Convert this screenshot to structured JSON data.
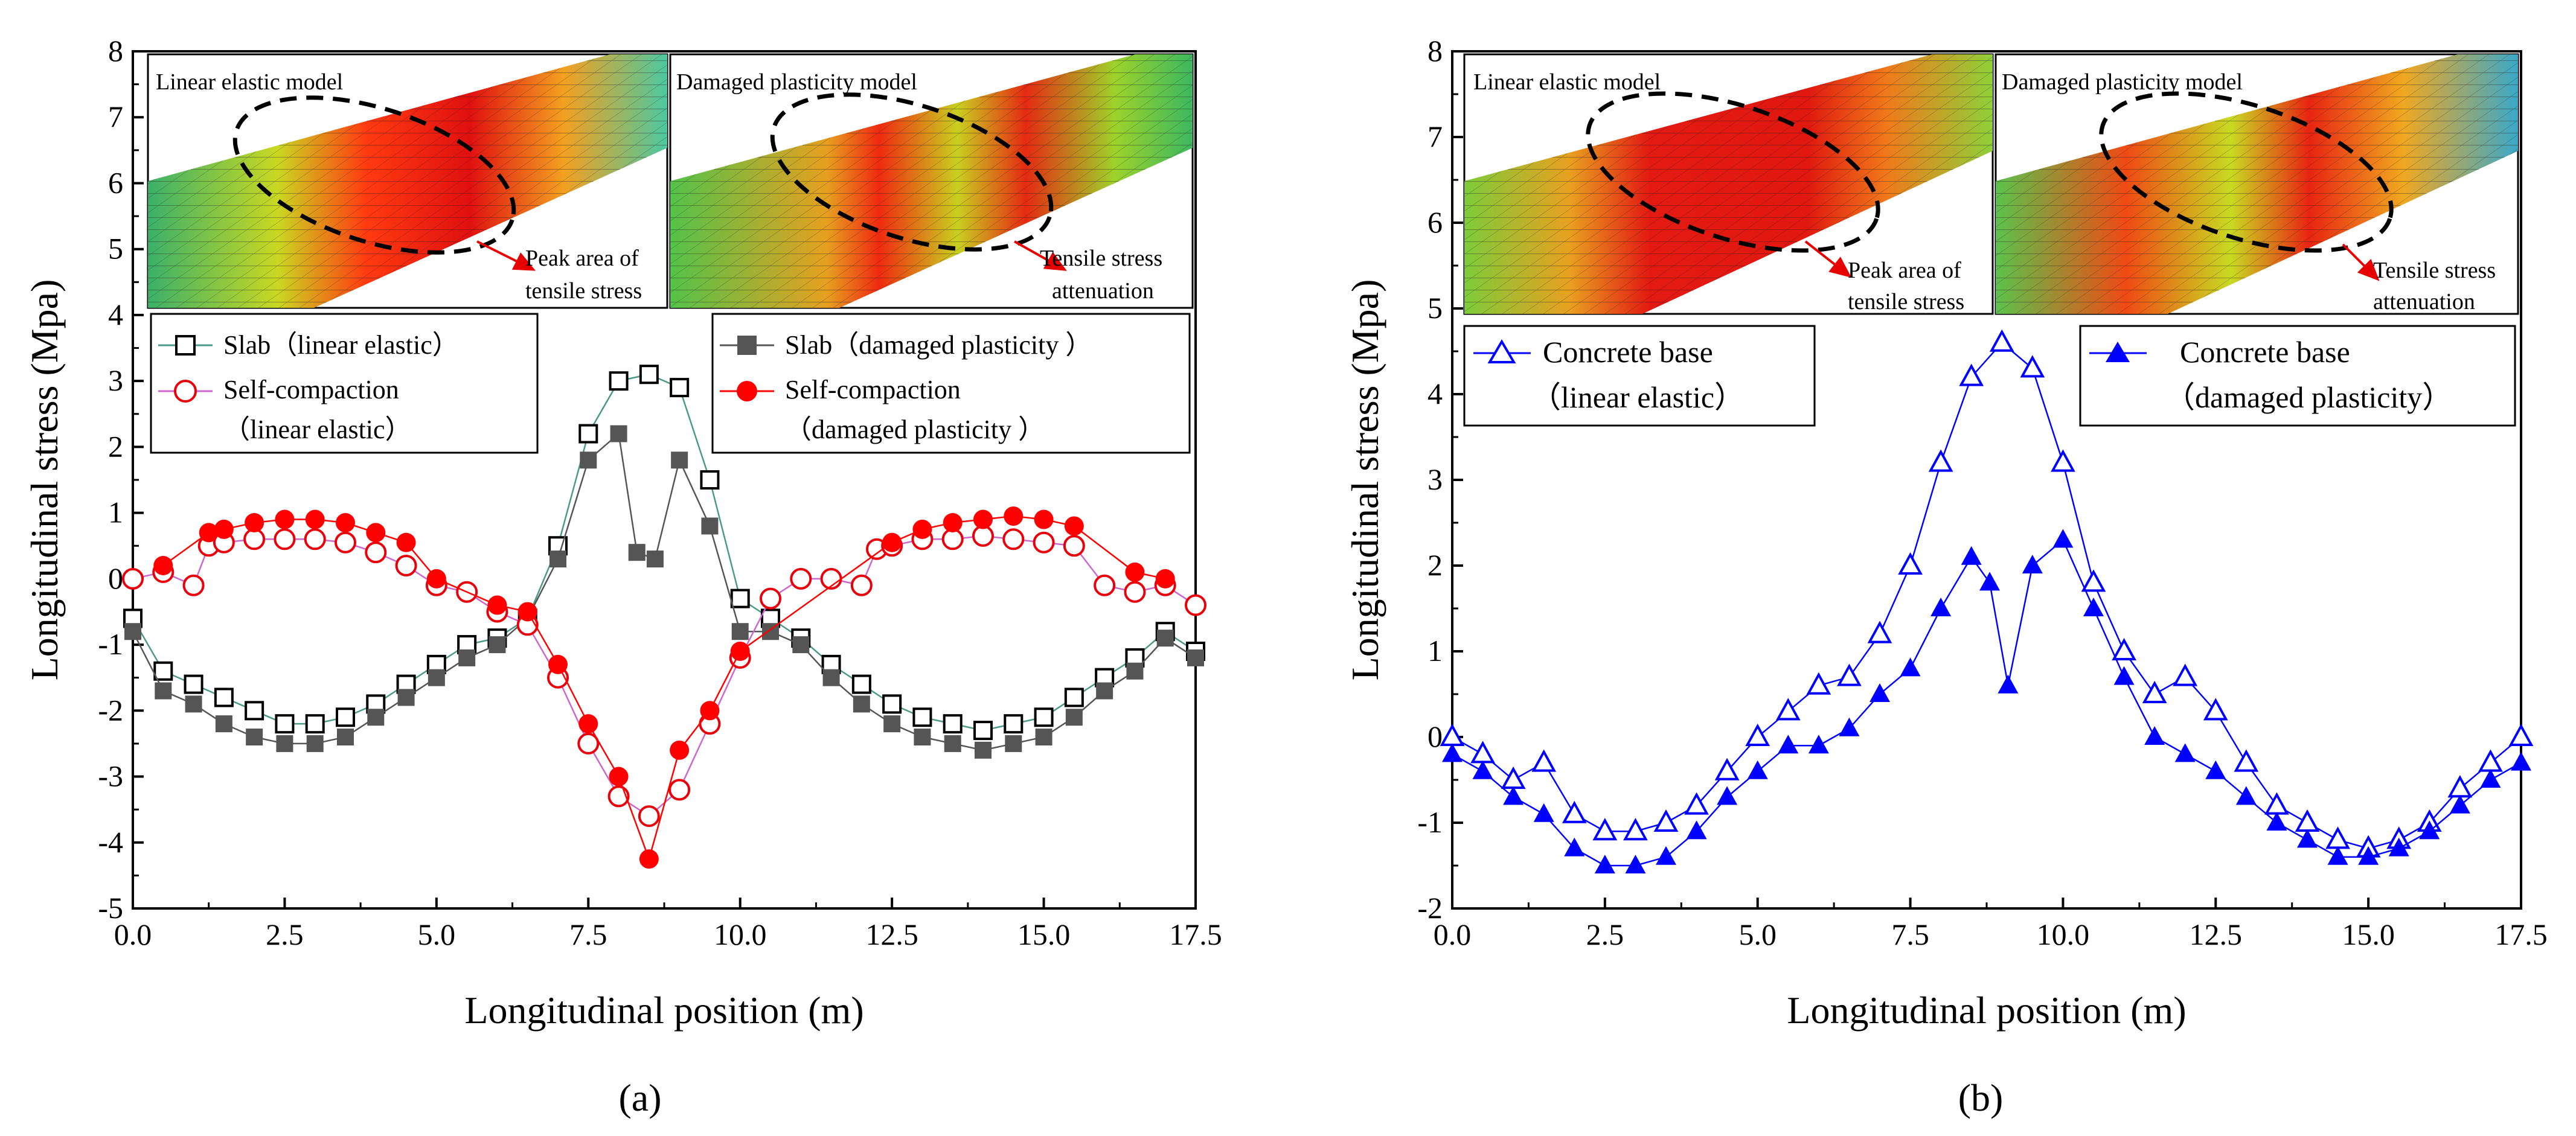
{
  "chart_data": [
    {
      "panel": "a",
      "panel_label": "(a)",
      "type": "scatter",
      "title": "",
      "xlabel": "Longitudinal position (m)",
      "ylabel": "Longitudinal stress (Mpa)",
      "xlim": [
        0,
        17.5
      ],
      "ylim": [
        -5,
        8
      ],
      "xticks": [
        "0.0",
        "2.5",
        "5.0",
        "7.5",
        "10.0",
        "12.5",
        "15.0",
        "17.5"
      ],
      "yticks": [
        "-5",
        "-4",
        "-3",
        "-2",
        "-1",
        "0",
        "1",
        "2",
        "3",
        "4",
        "5",
        "6",
        "7",
        "8"
      ],
      "inset_labels": [
        "Linear elastic model",
        "Damaged plasticity model"
      ],
      "inset_annotations": [
        {
          "line1": "Peak area of",
          "line2": "tensile stress"
        },
        {
          "line1": "Tensile stress",
          "line2": "attenuation"
        }
      ],
      "legend": [
        {
          "line1": "Slab（linear elastic）",
          "line2": ""
        },
        {
          "line1": "Self-compaction",
          "line2": "（linear elastic）"
        },
        {
          "line1": "Slab（damaged plasticity ）",
          "line2": ""
        },
        {
          "line1": "Self-compaction",
          "line2": "（damaged plasticity ）"
        }
      ],
      "series": [
        {
          "name": "Slab (linear elastic)",
          "marker": "square-open",
          "color": "#000000",
          "line": "#4a9a86",
          "x": [
            0.0,
            0.5,
            1.0,
            1.5,
            2.0,
            2.5,
            3.0,
            3.5,
            4.0,
            4.5,
            5.0,
            5.5,
            6.0,
            6.5,
            7.0,
            7.5,
            8.0,
            8.5,
            9.0,
            9.5,
            10.0,
            10.5,
            11.0,
            11.5,
            12.0,
            12.5,
            13.0,
            13.5,
            14.0,
            14.5,
            15.0,
            15.5,
            16.0,
            16.5,
            17.0,
            17.5
          ],
          "y": [
            -0.6,
            -1.4,
            -1.6,
            -1.8,
            -2.0,
            -2.2,
            -2.2,
            -2.1,
            -1.9,
            -1.6,
            -1.3,
            -1.0,
            -0.9,
            -0.6,
            0.5,
            2.2,
            3.0,
            3.1,
            2.9,
            1.5,
            -0.3,
            -0.6,
            -0.9,
            -1.3,
            -1.6,
            -1.9,
            -2.1,
            -2.2,
            -2.3,
            -2.2,
            -2.1,
            -1.8,
            -1.5,
            -1.2,
            -0.8,
            -1.1
          ]
        },
        {
          "name": "Slab (damaged plasticity)",
          "marker": "square-filled",
          "color": "#555555",
          "line": "#555555",
          "x": [
            0.0,
            0.5,
            1.0,
            1.5,
            2.0,
            2.5,
            3.0,
            3.5,
            4.0,
            4.5,
            5.0,
            5.5,
            6.0,
            6.5,
            7.0,
            7.5,
            8.0,
            8.3,
            8.6,
            9.0,
            9.5,
            10.0,
            10.5,
            11.0,
            11.5,
            12.0,
            12.5,
            13.0,
            13.5,
            14.0,
            14.5,
            15.0,
            15.5,
            16.0,
            16.5,
            17.0,
            17.5
          ],
          "y": [
            -0.8,
            -1.7,
            -1.9,
            -2.2,
            -2.4,
            -2.5,
            -2.5,
            -2.4,
            -2.1,
            -1.8,
            -1.5,
            -1.2,
            -1.0,
            -0.6,
            0.3,
            1.8,
            2.2,
            0.4,
            0.3,
            1.8,
            0.8,
            -0.8,
            -0.8,
            -1.0,
            -1.5,
            -1.9,
            -2.2,
            -2.4,
            -2.5,
            -2.6,
            -2.5,
            -2.4,
            -2.1,
            -1.7,
            -1.4,
            -0.9,
            -1.2
          ]
        },
        {
          "name": "Self-compaction (linear elastic)",
          "marker": "circle-open",
          "color": "#e8000b",
          "line": "#cc66cc",
          "x": [
            0.0,
            0.5,
            1.0,
            1.25,
            1.5,
            2.0,
            2.5,
            3.0,
            3.5,
            4.0,
            4.5,
            5.0,
            5.5,
            6.0,
            6.5,
            7.0,
            7.5,
            8.0,
            8.5,
            9.0,
            9.5,
            10.0,
            10.5,
            11.0,
            11.5,
            12.0,
            12.25,
            12.5,
            13.0,
            13.5,
            14.0,
            14.5,
            15.0,
            15.5,
            16.0,
            16.5,
            17.0,
            17.5
          ],
          "y": [
            0.0,
            0.1,
            -0.1,
            0.5,
            0.55,
            0.6,
            0.6,
            0.6,
            0.55,
            0.4,
            0.2,
            -0.1,
            -0.2,
            -0.5,
            -0.7,
            -1.5,
            -2.5,
            -3.3,
            -3.6,
            -3.2,
            -2.2,
            -1.2,
            -0.3,
            0.0,
            0.0,
            -0.1,
            0.45,
            0.5,
            0.6,
            0.6,
            0.65,
            0.6,
            0.55,
            0.5,
            -0.1,
            -0.2,
            -0.1,
            -0.4
          ]
        },
        {
          "name": "Self-compaction (damaged plasticity)",
          "marker": "circle-filled",
          "color": "#ff0000",
          "line": "#ff0000",
          "x": [
            0.5,
            1.25,
            1.5,
            2.0,
            2.5,
            3.0,
            3.5,
            4.0,
            4.5,
            5.0,
            6.0,
            6.5,
            7.0,
            7.5,
            8.0,
            8.5,
            9.0,
            9.5,
            10.0,
            12.5,
            13.0,
            13.5,
            14.0,
            14.5,
            15.0,
            15.5,
            16.5,
            17.0
          ],
          "y": [
            0.2,
            0.7,
            0.75,
            0.85,
            0.9,
            0.9,
            0.85,
            0.7,
            0.55,
            0.0,
            -0.4,
            -0.5,
            -1.3,
            -2.2,
            -3.0,
            -4.25,
            -2.6,
            -2.0,
            -1.1,
            0.55,
            0.75,
            0.85,
            0.9,
            0.95,
            0.9,
            0.8,
            0.1,
            0.0
          ]
        }
      ]
    },
    {
      "panel": "b",
      "panel_label": "(b)",
      "type": "scatter",
      "title": "",
      "xlabel": "Longitudinal position (m)",
      "ylabel": "Longitudinal stress (Mpa)",
      "xlim": [
        0,
        17.5
      ],
      "ylim": [
        -2,
        8
      ],
      "xticks": [
        "0.0",
        "2.5",
        "5.0",
        "7.5",
        "10.0",
        "12.5",
        "15.0",
        "17.5"
      ],
      "yticks": [
        "-2",
        "-1",
        "0",
        "1",
        "2",
        "3",
        "4",
        "5",
        "6",
        "7",
        "8"
      ],
      "inset_labels": [
        "Linear elastic model",
        "Damaged plasticity model"
      ],
      "inset_annotations": [
        {
          "line1": "Peak area of",
          "line2": "tensile stress"
        },
        {
          "line1": "Tensile stress",
          "line2": "attenuation"
        }
      ],
      "legend": [
        {
          "line1": "Concrete base",
          "line2": "（linear elastic）"
        },
        {
          "line1": "Concrete base",
          "line2": "（damaged plasticity）"
        }
      ],
      "series": [
        {
          "name": "Concrete base (linear elastic)",
          "marker": "triangle-open",
          "color": "#0000ff",
          "line": "#0000ff",
          "x": [
            0.0,
            0.5,
            1.0,
            1.5,
            2.0,
            2.5,
            3.0,
            3.5,
            4.0,
            4.5,
            5.0,
            5.5,
            6.0,
            6.5,
            7.0,
            7.5,
            8.0,
            8.5,
            9.0,
            9.5,
            10.0,
            10.5,
            11.0,
            11.5,
            12.0,
            12.5,
            13.0,
            13.5,
            14.0,
            14.5,
            15.0,
            15.5,
            16.0,
            16.5,
            17.0,
            17.5
          ],
          "y": [
            0.0,
            -0.2,
            -0.5,
            -0.3,
            -0.9,
            -1.1,
            -1.1,
            -1.0,
            -0.8,
            -0.4,
            0.0,
            0.3,
            0.6,
            0.7,
            1.2,
            2.0,
            3.2,
            4.2,
            4.6,
            4.3,
            3.2,
            1.8,
            1.0,
            0.5,
            0.7,
            0.3,
            -0.3,
            -0.8,
            -1.0,
            -1.2,
            -1.3,
            -1.2,
            -1.0,
            -0.6,
            -0.3,
            0.0
          ]
        },
        {
          "name": "Concrete base (damaged plasticity)",
          "marker": "triangle-filled",
          "color": "#0000ff",
          "line": "#0000ff",
          "x": [
            0.0,
            0.5,
            1.0,
            1.5,
            2.0,
            2.5,
            3.0,
            3.5,
            4.0,
            4.5,
            5.0,
            5.5,
            6.0,
            6.5,
            7.0,
            7.5,
            8.0,
            8.5,
            8.8,
            9.1,
            9.5,
            10.0,
            10.5,
            11.0,
            11.5,
            12.0,
            12.5,
            13.0,
            13.5,
            14.0,
            14.5,
            15.0,
            15.5,
            16.0,
            16.5,
            17.0,
            17.5
          ],
          "y": [
            -0.2,
            -0.4,
            -0.7,
            -0.9,
            -1.3,
            -1.5,
            -1.5,
            -1.4,
            -1.1,
            -0.7,
            -0.4,
            -0.1,
            -0.1,
            0.1,
            0.5,
            0.8,
            1.5,
            2.1,
            1.8,
            0.6,
            2.0,
            2.3,
            1.5,
            0.7,
            0.0,
            -0.2,
            -0.4,
            -0.7,
            -1.0,
            -1.2,
            -1.4,
            -1.4,
            -1.3,
            -1.1,
            -0.8,
            -0.5,
            -0.3
          ]
        }
      ]
    }
  ]
}
